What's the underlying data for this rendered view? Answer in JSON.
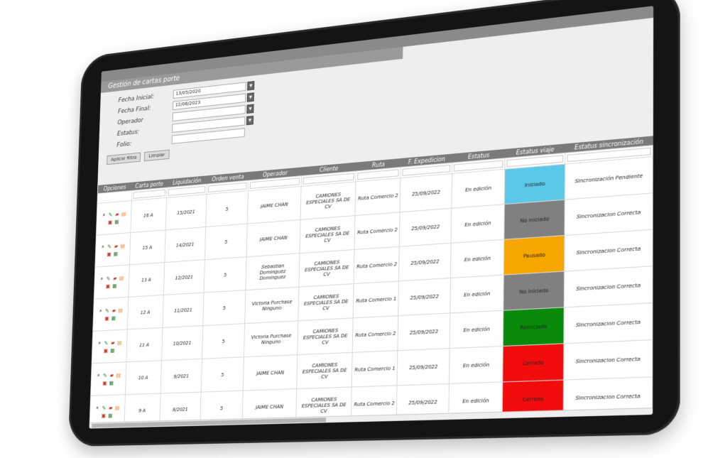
{
  "panel": {
    "title": "Gestión de cartas porte"
  },
  "filters": [
    {
      "label": "Fecha Inicial:",
      "value": "13/05/2020",
      "has_dropdown": true
    },
    {
      "label": "Fecha Final:",
      "value": "12/06/2023",
      "has_dropdown": true
    },
    {
      "label": "Operador",
      "value": "",
      "has_dropdown": true
    },
    {
      "label": "Estatus:",
      "value": "",
      "has_dropdown": true
    },
    {
      "label": "Folio:",
      "value": "",
      "has_dropdown": false
    }
  ],
  "buttons": {
    "apply": "Aplicar filtro",
    "clear": "Limpiar"
  },
  "columns": [
    "Opciones",
    "Carta porte",
    "Liquidación",
    "Orden venta",
    "Operador",
    "Cliente",
    "Ruta",
    "F. Expedicion",
    "Estatus",
    "Estatus viaje",
    "Estatus sincronización"
  ],
  "rows": [
    {
      "carta": "16 A",
      "liq": "15/2021",
      "orden": "5",
      "operador": "JAIME CHAN",
      "cliente": "CAMIONES ESPECIALES SA DE CV",
      "ruta": "Ruta Comercio 2",
      "fecha": "25/09/2022",
      "estatus": "En edición",
      "viaje": "Iniciado",
      "viaje_color": "#5bc8e8",
      "sync": "Sincronización Pendiente"
    },
    {
      "carta": "15 A",
      "liq": "14/2021",
      "orden": "5",
      "operador": "JAIME CHAN",
      "cliente": "CAMIONES ESPECIALES SA DE CV",
      "ruta": "Ruta Comercio 2",
      "fecha": "25/09/2022",
      "estatus": "En edición",
      "viaje": "No iniciado",
      "viaje_color": "#808080",
      "sync": "Sincronizacion Correcta"
    },
    {
      "carta": "13 A",
      "liq": "12/2021",
      "orden": "5",
      "operador": "Sebastian Dominguez Dominguez",
      "cliente": "CAMIONES ESPECIALES SA DE CV",
      "ruta": "Ruta Comercio 2",
      "fecha": "25/09/2022",
      "estatus": "En edición",
      "viaje": "Pausado",
      "viaje_color": "#f7a600",
      "sync": "Sincronizacion Correcta"
    },
    {
      "carta": "12 A",
      "liq": "11/2021",
      "orden": "5",
      "operador": "Victoria Purchase Ninguno",
      "cliente": "CAMIONES ESPECIALES SA DE CV",
      "ruta": "Ruta Comercio 1",
      "fecha": "25/09/2022",
      "estatus": "En edición",
      "viaje": "No iniciado",
      "viaje_color": "#808080",
      "sync": "Sincronizacion Correcta"
    },
    {
      "carta": "11 A",
      "liq": "10/2021",
      "orden": "5",
      "operador": "Victoria Purchase Ninguno",
      "cliente": "CAMIONES ESPECIALES SA DE CV",
      "ruta": "Ruta Comercio 2",
      "fecha": "25/09/2022",
      "estatus": "En edición",
      "viaje": "Reiniciado",
      "viaje_color": "#0a8a0a",
      "sync": "Sincronizacion Correcta"
    },
    {
      "carta": "10 A",
      "liq": "9/2021",
      "orden": "5",
      "operador": "JAIME CHAN",
      "cliente": "CAMIONES ESPECIALES SA DE CV",
      "ruta": "Ruta Comercio 1",
      "fecha": "25/09/2022",
      "estatus": "En edición",
      "viaje": "Cerrado",
      "viaje_color": "#f20d0d",
      "sync": "Sincronizacion Correcta"
    },
    {
      "carta": "9 A",
      "liq": "8/2021",
      "orden": "5",
      "operador": "JAIME CHAN",
      "cliente": "CAMIONES ESPECIALES SA DE CV",
      "ruta": "Ruta Comercio 2",
      "fecha": "25/09/2022",
      "estatus": "En edición",
      "viaje": "Cerrado",
      "viaje_color": "#f20d0d",
      "sync": "Sincronizacion Correcta"
    }
  ]
}
